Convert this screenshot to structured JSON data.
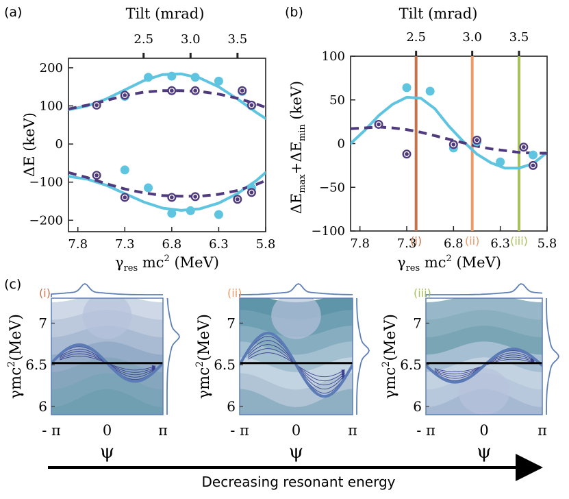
{
  "colors": {
    "sim": "#5ec4e0",
    "model": "#4f3a7d",
    "marker_i": "#c7724a",
    "marker_ii": "#ec9a66",
    "marker_iii": "#a8c25a",
    "phase_curve": "#5a7bb6"
  },
  "chart_data": [
    {
      "type": "scatter",
      "panel_label": "(a)",
      "title": "",
      "xlabel": "γres mc2 (MeV)",
      "xlabel_main": "γ",
      "xlabel_sub": "res",
      "xlabel_rest": " mc",
      "xlabel_sup": "2",
      "xlabel_unit": " (MeV)",
      "ylabel": "ΔE (keV)",
      "top_xlabel": "Tilt (mrad)",
      "xlim": [
        7.9,
        5.8
      ],
      "ylim": [
        -230,
        225
      ],
      "x_ticks": [
        "7.8",
        "7.3",
        "6.8",
        "6.3",
        "5.8"
      ],
      "x_tick_values": [
        7.8,
        7.3,
        6.8,
        6.3,
        5.8
      ],
      "y_ticks": [
        "200",
        "100",
        "0",
        "−100",
        "−200"
      ],
      "y_tick_values": [
        200,
        100,
        0,
        -100,
        -200
      ],
      "top_ticks": [
        "2.5",
        "3.0",
        "3.5"
      ],
      "top_tick_positions": [
        7.1,
        6.6,
        6.1
      ],
      "series": [
        {
          "kind": "markers",
          "style": "filled",
          "x": [
            7.3,
            7.05,
            6.8,
            6.55,
            6.3,
            6.05,
            5.95
          ],
          "y": [
            125,
            175,
            178,
            175,
            165,
            138,
            100
          ]
        },
        {
          "kind": "markers",
          "style": "ringed",
          "x": [
            7.6,
            7.3,
            6.8,
            6.55,
            6.05,
            5.95
          ],
          "y": [
            102,
            128,
            140,
            140,
            140,
            102
          ]
        },
        {
          "kind": "markers",
          "style": "filled",
          "x": [
            7.3,
            7.05,
            6.8,
            6.6,
            6.3,
            5.95
          ],
          "y": [
            -68,
            -115,
            -182,
            -175,
            -185,
            -115
          ]
        },
        {
          "kind": "markers",
          "style": "ringed",
          "x": [
            7.6,
            7.3,
            6.8,
            6.55,
            6.1,
            5.95
          ],
          "y": [
            -82,
            -140,
            -140,
            -138,
            -145,
            -127
          ]
        },
        {
          "kind": "curve",
          "style": "solid",
          "x": [
            7.9,
            7.7,
            7.5,
            7.3,
            7.1,
            6.9,
            6.7,
            6.5,
            6.3,
            6.1,
            5.9,
            5.8
          ],
          "y": [
            90,
            100,
            118,
            142,
            166,
            182,
            184,
            173,
            150,
            118,
            83,
            67
          ]
        },
        {
          "kind": "curve",
          "style": "dashed",
          "x": [
            7.9,
            7.7,
            7.5,
            7.3,
            7.1,
            6.9,
            6.7,
            6.5,
            6.3,
            6.1,
            5.9,
            5.8
          ],
          "y": [
            92,
            102,
            114,
            127,
            136,
            140,
            140,
            138,
            131,
            120,
            105,
            96
          ]
        },
        {
          "kind": "curve",
          "style": "solid",
          "x": [
            7.9,
            7.7,
            7.5,
            7.3,
            7.1,
            6.9,
            6.7,
            6.5,
            6.3,
            6.1,
            5.9,
            5.8
          ],
          "y": [
            -85,
            -92,
            -108,
            -130,
            -152,
            -168,
            -174,
            -170,
            -155,
            -130,
            -96,
            -75
          ]
        },
        {
          "kind": "curve",
          "style": "dashed",
          "x": [
            7.9,
            7.7,
            7.5,
            7.3,
            7.1,
            6.9,
            6.7,
            6.5,
            6.3,
            6.1,
            5.9,
            5.8
          ],
          "y": [
            -75,
            -88,
            -104,
            -118,
            -128,
            -135,
            -137,
            -137,
            -132,
            -122,
            -106,
            -96
          ]
        }
      ]
    },
    {
      "type": "scatter",
      "panel_label": "(b)",
      "title": "",
      "xlabel": "γres mc2 (MeV)",
      "xlabel_main": "γ",
      "xlabel_sub": "res",
      "xlabel_rest": " mc",
      "xlabel_sup": "2",
      "xlabel_unit": " (MeV)",
      "ylabel": "ΔEmax+ΔEmin (keV)",
      "ylabel_parts": [
        "ΔE",
        "max",
        "+ΔE",
        "min",
        " (keV)"
      ],
      "top_xlabel": "Tilt (mrad)",
      "xlim": [
        7.9,
        5.8
      ],
      "ylim": [
        -100,
        100
      ],
      "x_ticks": [
        "7.8",
        "7.3",
        "6.8",
        "6.3",
        "5.8"
      ],
      "x_tick_values": [
        7.8,
        7.3,
        6.8,
        6.3,
        5.8
      ],
      "y_ticks": [
        "100",
        "50",
        "0",
        "−50",
        "−100"
      ],
      "y_tick_values": [
        100,
        50,
        0,
        -50,
        -100
      ],
      "top_ticks": [
        "2.5",
        "3.0",
        "3.5"
      ],
      "top_tick_positions": [
        7.2,
        6.6,
        6.1
      ],
      "markers_lines": [
        {
          "x": 7.2,
          "label": "(i)",
          "color": "#c7724a"
        },
        {
          "x": 6.6,
          "label": "(ii)",
          "color": "#ec9a66"
        },
        {
          "x": 6.1,
          "label": "(iii)",
          "color": "#a8c25a"
        }
      ],
      "series": [
        {
          "kind": "markers",
          "style": "filled",
          "x": [
            7.3,
            7.05,
            6.8,
            6.55,
            6.3,
            5.95
          ],
          "y": [
            64,
            60,
            -5,
            2,
            -21,
            -13
          ]
        },
        {
          "kind": "markers",
          "style": "ringed",
          "x": [
            7.6,
            7.3,
            6.8,
            6.55,
            6.05,
            5.95
          ],
          "y": [
            22,
            -12,
            -1,
            4,
            -4,
            -25
          ]
        },
        {
          "kind": "curve",
          "style": "solid",
          "x": [
            7.9,
            7.75,
            7.6,
            7.45,
            7.3,
            7.15,
            7.0,
            6.85,
            6.7,
            6.55,
            6.4,
            6.25,
            6.1,
            5.95,
            5.8
          ],
          "y": [
            0,
            15,
            32,
            45,
            53,
            52,
            40,
            20,
            3,
            -12,
            -22,
            -28,
            -28,
            -23,
            -10
          ]
        },
        {
          "kind": "curve",
          "style": "dashed",
          "x": [
            7.9,
            7.75,
            7.6,
            7.45,
            7.3,
            7.15,
            7.0,
            6.85,
            6.7,
            6.55,
            6.4,
            6.25,
            6.1,
            5.95,
            5.8
          ],
          "y": [
            17,
            18,
            19,
            18,
            16,
            13,
            9,
            5,
            1,
            -3,
            -6,
            -8,
            -10,
            -11,
            -11
          ]
        }
      ]
    }
  ],
  "panel_c": {
    "panel_label": "(c)",
    "ylabel": "γmc2(MeV)",
    "ylabel_main": "γmc",
    "ylabel_sup": "2",
    "ylabel_unit": "(MeV)",
    "xlabel": "ψ",
    "ylim": [
      5.9,
      7.3
    ],
    "y_ticks": [
      "7",
      "6.5",
      "6"
    ],
    "y_tick_values": [
      7,
      6.5,
      6
    ],
    "x_ticks": [
      "- π",
      "0",
      "π"
    ],
    "x_tick_values": [
      -3.14159,
      0,
      3.14159
    ],
    "resonance_energy": 6.52,
    "subpanels": [
      {
        "label": "(i)",
        "color": "#c7724a",
        "separatrix_center": 6.52,
        "separatrix_amp": 0.22,
        "tint": "light"
      },
      {
        "label": "(ii)",
        "color": "#ec9a66",
        "separatrix_center": 6.5,
        "separatrix_amp": 0.38,
        "tint": "dark"
      },
      {
        "label": "(iii)",
        "color": "#a8c25a",
        "separatrix_center": 6.49,
        "separatrix_amp": 0.2,
        "tint": "mid"
      }
    ]
  },
  "arrow_caption": "Decreasing resonant energy"
}
